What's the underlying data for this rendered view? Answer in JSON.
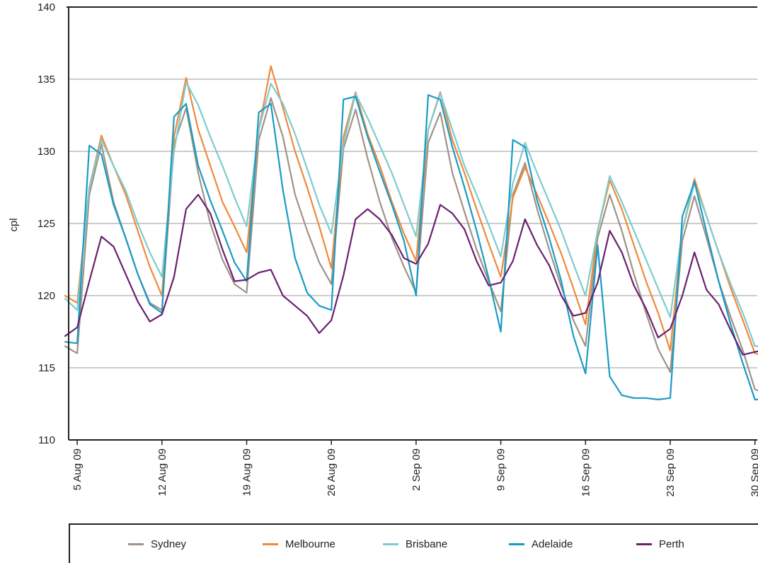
{
  "chart_data": {
    "type": "line",
    "title": "",
    "xlabel": "",
    "ylabel": "cpl",
    "ylim": [
      110,
      140
    ],
    "yticks": [
      "110",
      "115",
      "120",
      "125",
      "130",
      "135",
      "140"
    ],
    "xticks": [
      "5 Aug 09",
      "12 Aug 09",
      "19 Aug 09",
      "26 Aug 09",
      "2 Sep 09",
      "9 Sep 09",
      "16 Sep 09",
      "23 Sep 09",
      "30 Sep 09"
    ],
    "grid": "horizontal",
    "legend_position": "bottom",
    "x": [
      "4 Aug 09",
      "5 Aug 09",
      "6 Aug 09",
      "7 Aug 09",
      "8 Aug 09",
      "9 Aug 09",
      "10 Aug 09",
      "11 Aug 09",
      "12 Aug 09",
      "13 Aug 09",
      "14 Aug 09",
      "15 Aug 09",
      "16 Aug 09",
      "17 Aug 09",
      "18 Aug 09",
      "19 Aug 09",
      "20 Aug 09",
      "21 Aug 09",
      "22 Aug 09",
      "23 Aug 09",
      "24 Aug 09",
      "25 Aug 09",
      "26 Aug 09",
      "27 Aug 09",
      "28 Aug 09",
      "29 Aug 09",
      "30 Aug 09",
      "31 Aug 09",
      "1 Sep 09",
      "2 Sep 09",
      "3 Sep 09",
      "4 Sep 09",
      "5 Sep 09",
      "6 Sep 09",
      "7 Sep 09",
      "8 Sep 09",
      "9 Sep 09",
      "10 Sep 09",
      "11 Sep 09",
      "12 Sep 09",
      "13 Sep 09",
      "14 Sep 09",
      "15 Sep 09",
      "16 Sep 09",
      "17 Sep 09",
      "18 Sep 09",
      "19 Sep 09",
      "20 Sep 09",
      "21 Sep 09",
      "22 Sep 09",
      "23 Sep 09",
      "24 Sep 09",
      "25 Sep 09",
      "26 Sep 09",
      "27 Sep 09",
      "28 Sep 09",
      "29 Sep 09",
      "30 Sep 09",
      "1 Oct 09"
    ],
    "series": [
      {
        "name": "Sydney",
        "color": "#a09286",
        "values": [
          116.5,
          116.0,
          127.0,
          130.5,
          126.5,
          124.0,
          121.5,
          119.5,
          119.0,
          130.5,
          133.0,
          128.5,
          125.0,
          122.5,
          120.8,
          120.2,
          130.8,
          133.7,
          131.0,
          127.0,
          124.5,
          122.3,
          120.8,
          130.2,
          132.9,
          129.5,
          126.5,
          124.0,
          122.0,
          120.2,
          130.6,
          132.7,
          128.5,
          125.8,
          123.2,
          121.0,
          118.9,
          127.0,
          129.2,
          126.0,
          123.2,
          120.6,
          118.3,
          116.5,
          124.0,
          127.0,
          124.5,
          121.5,
          118.8,
          116.3,
          114.7,
          123.8,
          126.9,
          124.0,
          121.0,
          118.5,
          116.2,
          113.5,
          113.2
        ]
      },
      {
        "name": "Melbourne",
        "color": "#f0893a",
        "values": [
          120.0,
          119.5,
          127.5,
          131.1,
          129.0,
          127.0,
          124.5,
          122.0,
          120.0,
          131.0,
          135.1,
          131.5,
          129.0,
          126.5,
          124.8,
          123.0,
          131.5,
          135.9,
          133.0,
          130.0,
          127.5,
          124.8,
          121.9,
          131.0,
          134.1,
          131.2,
          129.0,
          126.5,
          124.3,
          122.4,
          131.5,
          134.1,
          130.8,
          128.5,
          126.0,
          123.6,
          121.3,
          126.8,
          128.9,
          127.0,
          125.0,
          122.9,
          120.5,
          118.0,
          124.5,
          128.0,
          126.0,
          123.5,
          121.0,
          118.8,
          116.2,
          124.5,
          128.1,
          125.5,
          123.0,
          120.5,
          118.3,
          116.0,
          115.8
        ]
      },
      {
        "name": "Brisbane",
        "color": "#7ecbcf",
        "values": [
          119.8,
          119.0,
          127.5,
          130.8,
          129.0,
          127.3,
          125.0,
          123.0,
          121.3,
          130.0,
          134.8,
          133.2,
          131.0,
          129.0,
          126.8,
          124.8,
          131.5,
          134.7,
          133.3,
          131.2,
          128.8,
          126.3,
          124.3,
          130.5,
          134.0,
          132.3,
          130.4,
          128.5,
          126.3,
          124.1,
          131.5,
          134.0,
          131.5,
          129.0,
          127.0,
          124.9,
          122.7,
          127.8,
          130.6,
          128.5,
          126.5,
          124.5,
          122.2,
          120.0,
          124.5,
          128.3,
          126.5,
          124.5,
          122.5,
          120.5,
          118.5,
          124.5,
          127.8,
          125.5,
          123.0,
          120.8,
          118.8,
          116.5,
          116.5
        ]
      },
      {
        "name": "Adelaide",
        "color": "#1a9bc4",
        "values": [
          116.8,
          116.7,
          130.4,
          129.8,
          126.3,
          124.0,
          121.5,
          119.4,
          118.8,
          132.4,
          133.3,
          129.0,
          126.6,
          124.5,
          122.3,
          121.0,
          132.7,
          133.3,
          127.3,
          122.6,
          120.2,
          119.3,
          119.0,
          133.6,
          133.8,
          131.0,
          128.6,
          126.3,
          123.8,
          120.0,
          133.9,
          133.6,
          130.3,
          127.5,
          124.5,
          121.2,
          117.5,
          130.8,
          130.3,
          126.6,
          124.0,
          121.0,
          117.2,
          114.6,
          123.5,
          114.4,
          113.1,
          112.9,
          112.9,
          112.8,
          112.9,
          125.5,
          127.9,
          124.4,
          121.0,
          118.0,
          115.3,
          112.8,
          112.8
        ]
      },
      {
        "name": "Perth",
        "color": "#6b2070",
        "values": [
          117.2,
          117.8,
          121.0,
          124.1,
          123.4,
          121.5,
          119.6,
          118.2,
          118.7,
          121.3,
          126.0,
          127.0,
          125.7,
          123.2,
          121.0,
          121.1,
          121.6,
          121.8,
          120.0,
          119.3,
          118.6,
          117.4,
          118.3,
          121.4,
          125.3,
          126.0,
          125.3,
          124.2,
          122.6,
          122.2,
          123.6,
          126.3,
          125.7,
          124.6,
          122.4,
          120.7,
          120.9,
          122.4,
          125.3,
          123.5,
          122.1,
          120.0,
          118.6,
          118.8,
          120.9,
          124.5,
          123.0,
          120.7,
          119.1,
          117.1,
          117.7,
          120.0,
          123.0,
          120.4,
          119.4,
          117.6,
          115.9,
          116.1,
          116.3
        ]
      }
    ]
  }
}
